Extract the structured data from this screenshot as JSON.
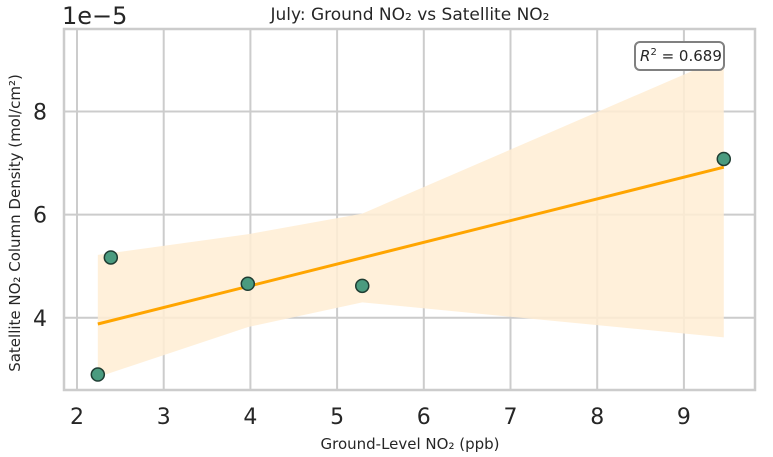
{
  "chart_data": {
    "type": "scatter",
    "title": "July: Ground NO₂ vs Satellite NO₂",
    "xlabel": "Ground-Level NO₂ (ppb)",
    "ylabel": "Satellite NO₂ Column Density (mol/cm²)",
    "y_offset_label": "1e−5",
    "xlim": [
      1.85,
      9.82
    ],
    "ylim": [
      2.6,
      9.6
    ],
    "x_ticks": [
      2,
      3,
      4,
      5,
      6,
      7,
      8,
      9
    ],
    "y_ticks": [
      4,
      6,
      8
    ],
    "grid": true,
    "points": [
      {
        "x": 2.24,
        "y": 2.9
      },
      {
        "x": 2.39,
        "y": 5.17
      },
      {
        "x": 3.97,
        "y": 4.66
      },
      {
        "x": 5.29,
        "y": 4.62
      },
      {
        "x": 9.46,
        "y": 7.08
      }
    ],
    "regression": {
      "x": [
        2.24,
        9.46
      ],
      "y": [
        3.88,
        6.92
      ],
      "ci_upper": [
        [
          2.24,
          5.22
        ],
        [
          3.97,
          5.62
        ],
        [
          5.29,
          6.02
        ],
        [
          9.46,
          9.05
        ]
      ],
      "ci_lower": [
        [
          2.24,
          2.85
        ],
        [
          3.97,
          3.82
        ],
        [
          5.29,
          4.3
        ],
        [
          9.46,
          3.62
        ]
      ]
    },
    "annotation": {
      "r2_value": "0.689",
      "placement": "top-right"
    },
    "colors": {
      "point_fill": "#4a9b7f",
      "point_edge": "#1f3d33",
      "line": "#ffa500",
      "band": "#ffedd3",
      "grid": "#cccccc",
      "spine": "#cccccc"
    }
  }
}
